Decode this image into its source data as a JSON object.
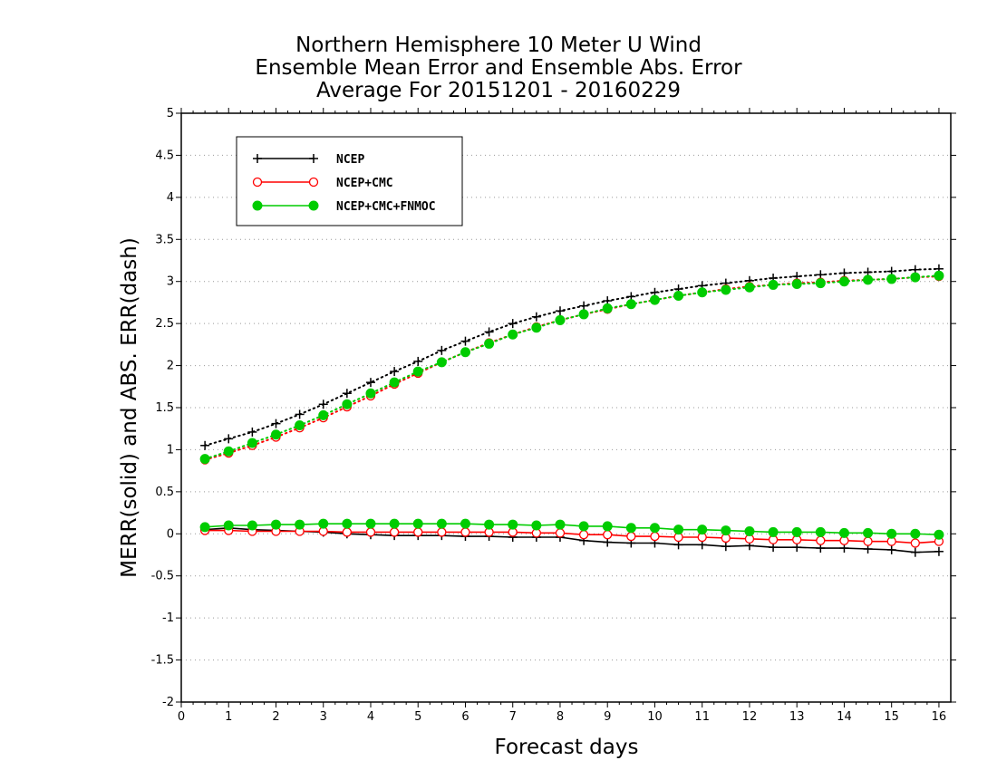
{
  "chart_data": {
    "type": "line",
    "title": [
      "Northern Hemisphere 10 Meter U Wind",
      "Ensemble Mean Error and Ensemble Abs. Error",
      "Average For 20151201 - 20160229"
    ],
    "xlabel": "Forecast days",
    "ylabel": "MERR(solid) and ABS. ERR(dash)",
    "xlim": [
      0,
      16.25
    ],
    "ylim": [
      -2,
      5
    ],
    "xticks": [
      0,
      1,
      2,
      3,
      4,
      5,
      6,
      7,
      8,
      9,
      10,
      11,
      12,
      13,
      14,
      15,
      16
    ],
    "yticks": [
      -2,
      -1.5,
      -1,
      -0.5,
      0,
      0.5,
      1,
      1.5,
      2,
      2.5,
      3,
      3.5,
      4,
      4.5,
      5
    ],
    "ytick_labels": [
      "-2",
      "-1.5",
      "-1",
      "-0.5",
      "0",
      "0.5",
      "1",
      "1.5",
      "2",
      "2.5",
      "3",
      "3.5",
      "4",
      "4.5",
      "5"
    ],
    "grid": "horizontal dotted",
    "legend_position": "top-left",
    "x": [
      0.5,
      1,
      1.5,
      2,
      2.5,
      3,
      3.5,
      4,
      4.5,
      5,
      5.5,
      6,
      6.5,
      7,
      7.5,
      8,
      8.5,
      9,
      9.5,
      10,
      10.5,
      11,
      11.5,
      12,
      12.5,
      13,
      13.5,
      14,
      14.5,
      15,
      15.5,
      16
    ],
    "series": [
      {
        "name": "NCEP",
        "color": "#000000",
        "marker": "plus",
        "kind": "merr",
        "values": [
          0.05,
          0.07,
          0.05,
          0.04,
          0.03,
          0.02,
          0.0,
          -0.01,
          -0.02,
          -0.02,
          -0.02,
          -0.03,
          -0.03,
          -0.04,
          -0.04,
          -0.04,
          -0.08,
          -0.1,
          -0.11,
          -0.11,
          -0.13,
          -0.13,
          -0.15,
          -0.14,
          -0.16,
          -0.16,
          -0.17,
          -0.17,
          -0.18,
          -0.19,
          -0.22,
          -0.21
        ]
      },
      {
        "name": "NCEP+CMC",
        "color": "#ff0000",
        "marker": "open-circle",
        "kind": "merr",
        "values": [
          0.04,
          0.04,
          0.03,
          0.03,
          0.03,
          0.03,
          0.02,
          0.02,
          0.02,
          0.02,
          0.02,
          0.02,
          0.02,
          0.02,
          0.01,
          0.01,
          -0.01,
          -0.01,
          -0.03,
          -0.03,
          -0.04,
          -0.04,
          -0.05,
          -0.06,
          -0.07,
          -0.07,
          -0.08,
          -0.08,
          -0.09,
          -0.09,
          -0.11,
          -0.09
        ]
      },
      {
        "name": "NCEP+CMC+FNMOC",
        "color": "#00cc00",
        "marker": "filled-circle",
        "kind": "merr",
        "values": [
          0.08,
          0.1,
          0.1,
          0.11,
          0.11,
          0.12,
          0.12,
          0.12,
          0.12,
          0.12,
          0.12,
          0.12,
          0.11,
          0.11,
          0.1,
          0.11,
          0.09,
          0.09,
          0.07,
          0.07,
          0.05,
          0.05,
          0.04,
          0.03,
          0.02,
          0.02,
          0.02,
          0.01,
          0.01,
          0.0,
          0.0,
          -0.01
        ]
      },
      {
        "name": "NCEP",
        "color": "#000000",
        "marker": "plus",
        "kind": "abs_err",
        "values": [
          1.05,
          1.13,
          1.21,
          1.31,
          1.42,
          1.54,
          1.67,
          1.8,
          1.93,
          2.05,
          2.18,
          2.29,
          2.4,
          2.5,
          2.58,
          2.65,
          2.71,
          2.77,
          2.82,
          2.87,
          2.91,
          2.95,
          2.98,
          3.01,
          3.04,
          3.06,
          3.08,
          3.1,
          3.11,
          3.12,
          3.14,
          3.15
        ]
      },
      {
        "name": "NCEP+CMC",
        "color": "#ff0000",
        "marker": "open-circle",
        "kind": "abs_err",
        "values": [
          0.88,
          0.96,
          1.05,
          1.15,
          1.26,
          1.38,
          1.51,
          1.64,
          1.78,
          1.91,
          2.04,
          2.16,
          2.27,
          2.37,
          2.46,
          2.54,
          2.61,
          2.67,
          2.73,
          2.78,
          2.83,
          2.87,
          2.91,
          2.94,
          2.96,
          2.98,
          2.99,
          3.01,
          3.02,
          3.03,
          3.05,
          3.06
        ]
      },
      {
        "name": "NCEP+CMC+FNMOC",
        "color": "#00cc00",
        "marker": "filled-circle",
        "kind": "abs_err",
        "values": [
          0.89,
          0.98,
          1.08,
          1.18,
          1.29,
          1.41,
          1.54,
          1.67,
          1.8,
          1.93,
          2.04,
          2.16,
          2.26,
          2.37,
          2.45,
          2.54,
          2.61,
          2.68,
          2.73,
          2.78,
          2.83,
          2.87,
          2.9,
          2.93,
          2.96,
          2.97,
          2.98,
          3.0,
          3.02,
          3.03,
          3.05,
          3.07
        ]
      }
    ],
    "legend": [
      "NCEP",
      "NCEP+CMC",
      "NCEP+CMC+FNMOC"
    ]
  }
}
